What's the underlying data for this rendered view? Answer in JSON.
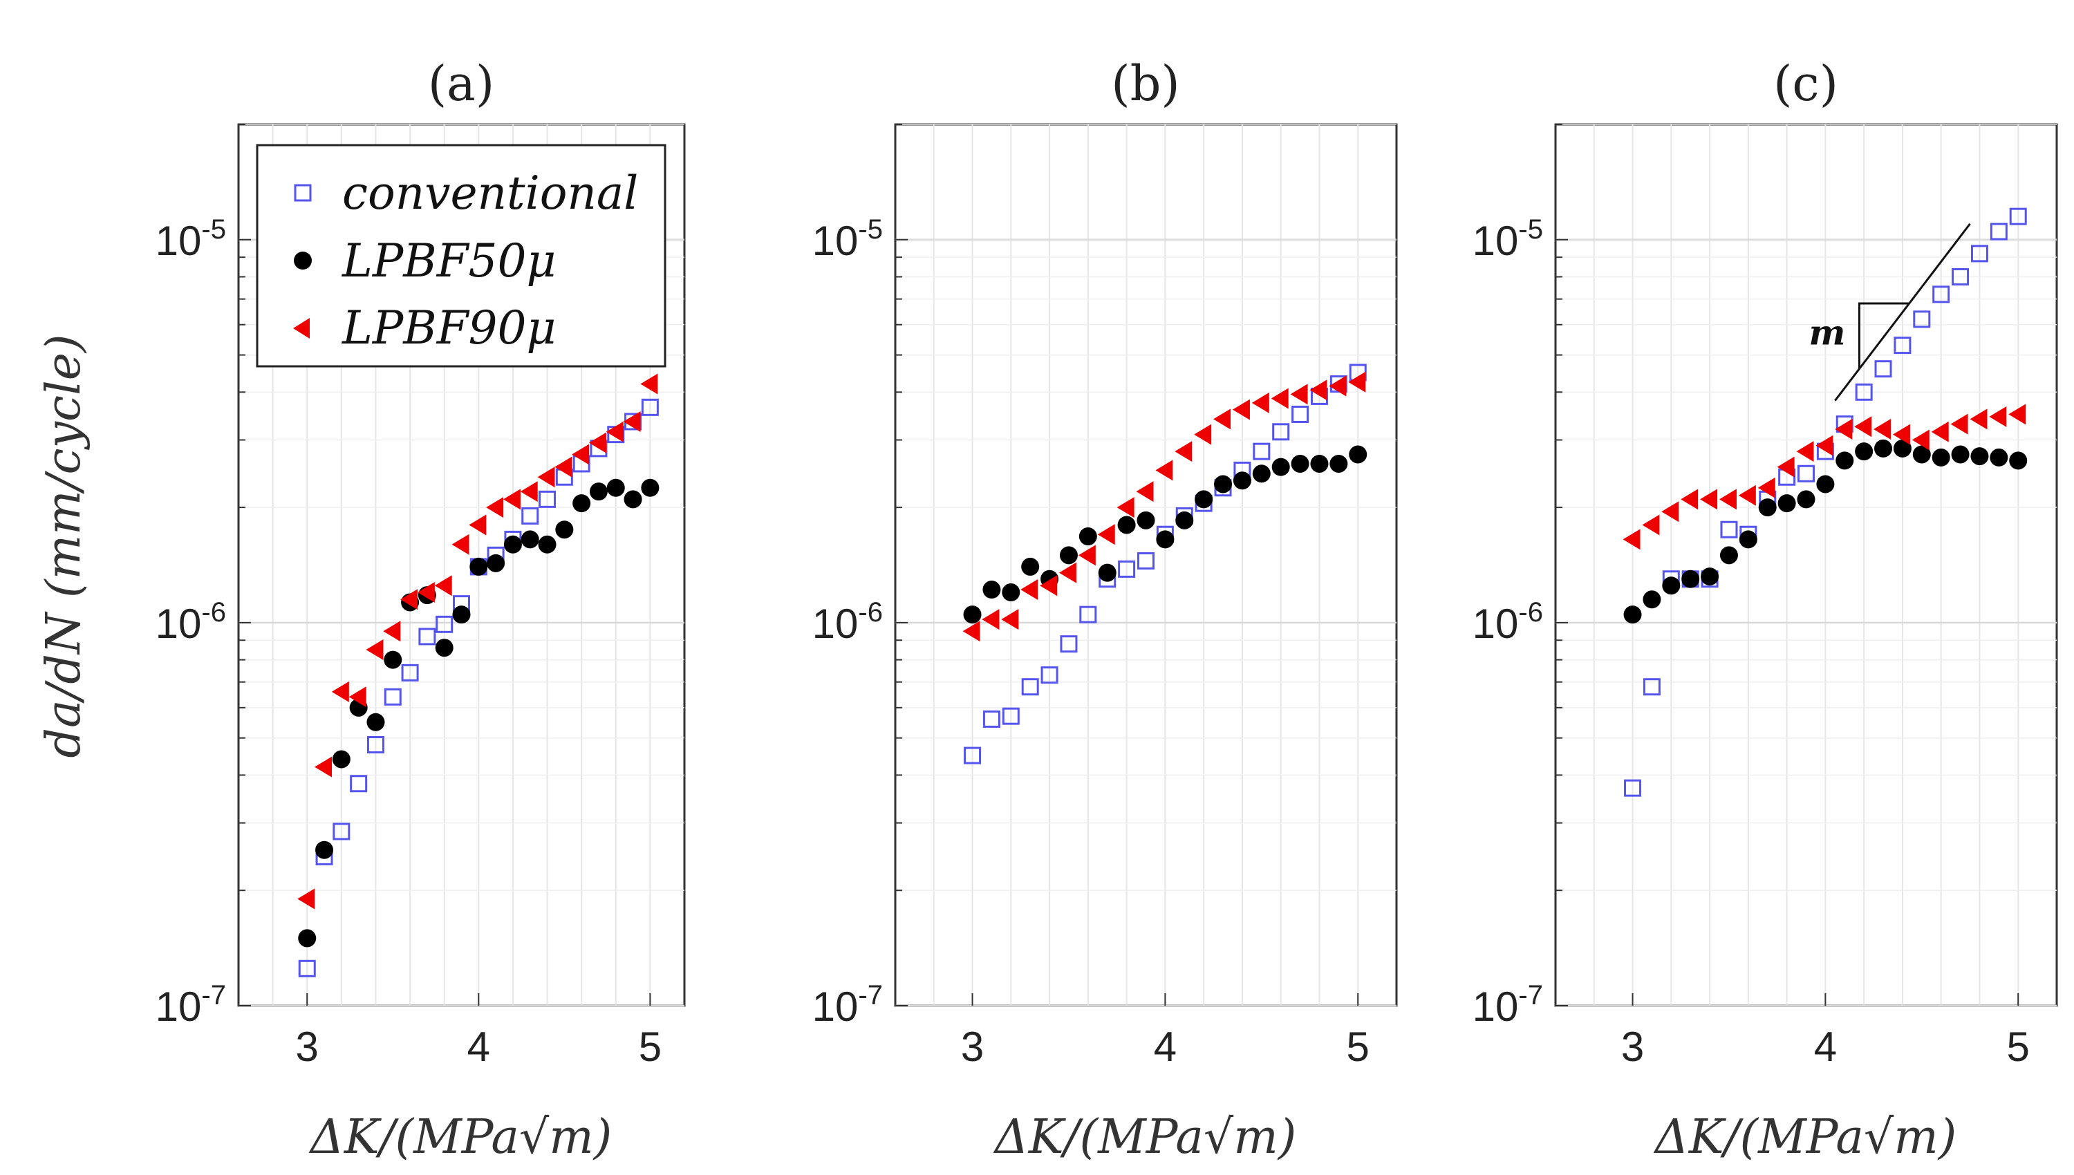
{
  "figure": {
    "ylabel": "da/dN (mm/cycle)",
    "xlabel": "ΔK/(MPa√m)"
  },
  "legend": [
    {
      "label": "conventional",
      "color": "#5555ee",
      "marker": "open-square"
    },
    {
      "label": "LPBF50μ",
      "color": "#000000",
      "marker": "filled-circle"
    },
    {
      "label": "LPBF90μ",
      "color": "#ee0000",
      "marker": "left-triangle"
    }
  ],
  "chart_data": [
    {
      "type": "scatter",
      "title": "(a)",
      "xlabel": "ΔK/(MPa√m)",
      "ylabel": "da/dN (mm/cycle)",
      "xlim": [
        2.6,
        5.2
      ],
      "ylim": [
        1e-07,
        2e-05
      ],
      "yscale": "log",
      "grid": true,
      "xticks": [
        {
          "value": 3,
          "label": "3"
        },
        {
          "value": 4,
          "label": "4"
        },
        {
          "value": 5,
          "label": "5"
        }
      ],
      "yticks": [
        {
          "value": 1e-07,
          "base": "10",
          "exp": "-7"
        },
        {
          "value": 1e-06,
          "base": "10",
          "exp": "-6"
        },
        {
          "value": 1e-05,
          "base": "10",
          "exp": "-5"
        }
      ],
      "legend_position": "top-left",
      "series": [
        {
          "name": "conventional",
          "x": [
            3.0,
            3.1,
            3.2,
            3.3,
            3.4,
            3.5,
            3.6,
            3.7,
            3.8,
            3.9,
            4.0,
            4.1,
            4.2,
            4.3,
            4.4,
            4.5,
            4.6,
            4.7,
            4.8,
            4.9,
            5.0
          ],
          "y": [
            1.25e-07,
            2.45e-07,
            2.85e-07,
            3.8e-07,
            4.8e-07,
            6.4e-07,
            7.4e-07,
            9.2e-07,
            9.9e-07,
            1.12e-06,
            1.4e-06,
            1.5e-06,
            1.65e-06,
            1.9e-06,
            2.1e-06,
            2.4e-06,
            2.6e-06,
            2.85e-06,
            3.1e-06,
            3.35e-06,
            3.65e-06
          ]
        },
        {
          "name": "LPBF50μ",
          "x": [
            3.0,
            3.1,
            3.2,
            3.3,
            3.4,
            3.5,
            3.6,
            3.7,
            3.8,
            3.9,
            4.0,
            4.1,
            4.2,
            4.3,
            4.4,
            4.5,
            4.6,
            4.7,
            4.8,
            4.9,
            5.0
          ],
          "y": [
            1.5e-07,
            2.55e-07,
            4.4e-07,
            6e-07,
            5.5e-07,
            8e-07,
            1.13e-06,
            1.18e-06,
            8.6e-07,
            1.05e-06,
            1.4e-06,
            1.43e-06,
            1.6e-06,
            1.65e-06,
            1.6e-06,
            1.75e-06,
            2.05e-06,
            2.2e-06,
            2.25e-06,
            2.1e-06,
            2.25e-06
          ]
        },
        {
          "name": "LPBF90μ",
          "x": [
            3.0,
            3.1,
            3.2,
            3.3,
            3.4,
            3.5,
            3.6,
            3.7,
            3.8,
            3.9,
            4.0,
            4.1,
            4.2,
            4.3,
            4.4,
            4.5,
            4.6,
            4.7,
            4.8,
            4.9,
            5.0
          ],
          "y": [
            1.9e-07,
            4.2e-07,
            6.6e-07,
            6.4e-07,
            8.5e-07,
            9.5e-07,
            1.15e-06,
            1.2e-06,
            1.25e-06,
            1.6e-06,
            1.8e-06,
            2e-06,
            2.1e-06,
            2.2e-06,
            2.4e-06,
            2.55e-06,
            2.75e-06,
            2.95e-06,
            3.15e-06,
            3.35e-06,
            4.2e-06
          ]
        }
      ]
    },
    {
      "type": "scatter",
      "title": "(b)",
      "xlabel": "ΔK/(MPa√m)",
      "ylabel": "",
      "xlim": [
        2.6,
        5.2
      ],
      "ylim": [
        1e-07,
        2e-05
      ],
      "yscale": "log",
      "grid": true,
      "xticks": [
        {
          "value": 3,
          "label": "3"
        },
        {
          "value": 4,
          "label": "4"
        },
        {
          "value": 5,
          "label": "5"
        }
      ],
      "yticks": [
        {
          "value": 1e-07,
          "base": "10",
          "exp": "-7"
        },
        {
          "value": 1e-06,
          "base": "10",
          "exp": "-6"
        },
        {
          "value": 1e-05,
          "base": "10",
          "exp": "-5"
        }
      ],
      "series": [
        {
          "name": "conventional",
          "x": [
            3.0,
            3.1,
            3.2,
            3.3,
            3.4,
            3.5,
            3.6,
            3.7,
            3.8,
            3.9,
            4.0,
            4.1,
            4.2,
            4.3,
            4.4,
            4.5,
            4.6,
            4.7,
            4.8,
            4.9,
            5.0
          ],
          "y": [
            4.5e-07,
            5.6e-07,
            5.7e-07,
            6.8e-07,
            7.3e-07,
            8.8e-07,
            1.05e-06,
            1.3e-06,
            1.38e-06,
            1.45e-06,
            1.7e-06,
            1.9e-06,
            2.05e-06,
            2.25e-06,
            2.5e-06,
            2.8e-06,
            3.15e-06,
            3.5e-06,
            3.9e-06,
            4.2e-06,
            4.5e-06
          ]
        },
        {
          "name": "LPBF50μ",
          "x": [
            3.0,
            3.1,
            3.2,
            3.3,
            3.4,
            3.5,
            3.6,
            3.7,
            3.8,
            3.9,
            4.0,
            4.1,
            4.2,
            4.3,
            4.4,
            4.5,
            4.6,
            4.7,
            4.8,
            4.9,
            5.0
          ],
          "y": [
            1.05e-06,
            1.22e-06,
            1.2e-06,
            1.4e-06,
            1.3e-06,
            1.5e-06,
            1.68e-06,
            1.35e-06,
            1.8e-06,
            1.85e-06,
            1.65e-06,
            1.85e-06,
            2.1e-06,
            2.3e-06,
            2.35e-06,
            2.45e-06,
            2.55e-06,
            2.6e-06,
            2.6e-06,
            2.6e-06,
            2.75e-06
          ]
        },
        {
          "name": "LPBF90μ",
          "x": [
            3.0,
            3.1,
            3.2,
            3.3,
            3.4,
            3.5,
            3.6,
            3.7,
            3.8,
            3.9,
            4.0,
            4.1,
            4.2,
            4.3,
            4.4,
            4.5,
            4.6,
            4.7,
            4.8,
            4.9,
            5.0
          ],
          "y": [
            9.5e-07,
            1.02e-06,
            1.02e-06,
            1.22e-06,
            1.25e-06,
            1.35e-06,
            1.5e-06,
            1.7e-06,
            2e-06,
            2.2e-06,
            2.5e-06,
            2.8e-06,
            3.1e-06,
            3.4e-06,
            3.6e-06,
            3.75e-06,
            3.85e-06,
            3.95e-06,
            4.05e-06,
            4.15e-06,
            4.25e-06
          ]
        }
      ]
    },
    {
      "type": "scatter",
      "title": "(c)",
      "xlabel": "ΔK/(MPa√m)",
      "ylabel": "",
      "xlim": [
        2.6,
        5.2
      ],
      "ylim": [
        1e-07,
        2e-05
      ],
      "yscale": "log",
      "grid": true,
      "xticks": [
        {
          "value": 3,
          "label": "3"
        },
        {
          "value": 4,
          "label": "4"
        },
        {
          "value": 5,
          "label": "5"
        }
      ],
      "yticks": [
        {
          "value": 1e-07,
          "base": "10",
          "exp": "-7"
        },
        {
          "value": 1e-06,
          "base": "10",
          "exp": "-6"
        },
        {
          "value": 1e-05,
          "base": "10",
          "exp": "-5"
        }
      ],
      "annotations": [
        {
          "text": "m",
          "type": "slope-triangle",
          "x_from": 4.05,
          "x_to": 4.75,
          "y_from": 3.8e-06,
          "y_to": 1.1e-05
        }
      ],
      "series": [
        {
          "name": "conventional",
          "x": [
            3.0,
            3.1,
            3.2,
            3.3,
            3.4,
            3.5,
            3.6,
            3.7,
            3.8,
            3.9,
            4.0,
            4.1,
            4.2,
            4.3,
            4.4,
            4.5,
            4.6,
            4.7,
            4.8,
            4.9,
            5.0
          ],
          "y": [
            3.7e-07,
            6.8e-07,
            1.3e-06,
            1.3e-06,
            1.3e-06,
            1.75e-06,
            1.7e-06,
            2.1e-06,
            2.4e-06,
            2.45e-06,
            2.8e-06,
            3.3e-06,
            4e-06,
            4.6e-06,
            5.3e-06,
            6.2e-06,
            7.2e-06,
            8e-06,
            9.2e-06,
            1.05e-05,
            1.15e-05
          ]
        },
        {
          "name": "LPBF50μ",
          "x": [
            3.0,
            3.1,
            3.2,
            3.3,
            3.4,
            3.5,
            3.6,
            3.7,
            3.8,
            3.9,
            4.0,
            4.1,
            4.2,
            4.3,
            4.4,
            4.5,
            4.6,
            4.7,
            4.8,
            4.9,
            5.0
          ],
          "y": [
            1.05e-06,
            1.15e-06,
            1.25e-06,
            1.3e-06,
            1.32e-06,
            1.5e-06,
            1.65e-06,
            2e-06,
            2.05e-06,
            2.1e-06,
            2.3e-06,
            2.65e-06,
            2.8e-06,
            2.85e-06,
            2.85e-06,
            2.75e-06,
            2.7e-06,
            2.75e-06,
            2.72e-06,
            2.7e-06,
            2.65e-06
          ]
        },
        {
          "name": "LPBF90μ",
          "x": [
            3.0,
            3.1,
            3.2,
            3.3,
            3.4,
            3.5,
            3.6,
            3.7,
            3.8,
            3.9,
            4.0,
            4.1,
            4.2,
            4.3,
            4.4,
            4.5,
            4.6,
            4.7,
            4.8,
            4.9,
            5.0
          ],
          "y": [
            1.65e-06,
            1.8e-06,
            1.95e-06,
            2.1e-06,
            2.1e-06,
            2.1e-06,
            2.15e-06,
            2.25e-06,
            2.55e-06,
            2.8e-06,
            2.9e-06,
            3.2e-06,
            3.25e-06,
            3.2e-06,
            3.1e-06,
            3e-06,
            3.15e-06,
            3.3e-06,
            3.4e-06,
            3.45e-06,
            3.5e-06
          ]
        }
      ]
    }
  ]
}
